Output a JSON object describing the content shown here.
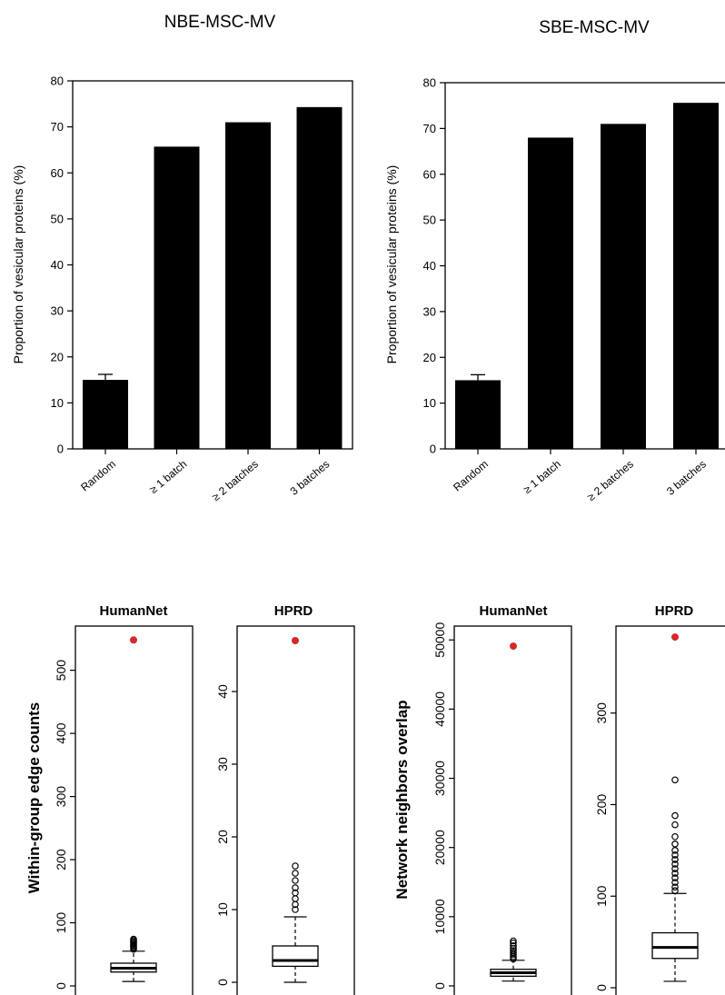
{
  "chart_data": [
    {
      "type": "bar",
      "title": "NBE-MSC-MV",
      "ylabel": "Proportion of vesicular proteins (%)",
      "categories": [
        "Random",
        "≥  1 batch",
        "≥  2 batches",
        "3 batches"
      ],
      "values": [
        15,
        65.7,
        71,
        74.3
      ],
      "error": [
        1.2,
        null,
        null,
        null
      ],
      "ylim": [
        0,
        80
      ],
      "yticks": [
        "0",
        "10",
        "20",
        "30",
        "40",
        "50",
        "60",
        "70",
        "80"
      ],
      "bar_color": "#000000"
    },
    {
      "type": "bar",
      "title": "SBE-MSC-MV",
      "ylabel": "Proportion of vesicular proteins (%)",
      "categories": [
        "Random",
        "≥  1 batch",
        "≥  2 batches",
        "3 batches"
      ],
      "values": [
        15,
        68,
        71,
        75.6
      ],
      "error": [
        1.2,
        null,
        null,
        null
      ],
      "ylim": [
        0,
        80
      ],
      "yticks": [
        "0",
        "10",
        "20",
        "30",
        "40",
        "50",
        "60",
        "70",
        "80"
      ],
      "bar_color": "#000000"
    },
    {
      "type": "boxplot",
      "ylabel": "Within-group edge counts",
      "panels": [
        {
          "title": "HumanNet",
          "ylim": [
            0,
            570
          ],
          "yticks": [
            "0",
            "100",
            "200",
            "300",
            "400",
            "500"
          ],
          "box": {
            "whisker_low": 7,
            "q1": 22,
            "median": 28,
            "q3": 36,
            "whisker_high": 55
          },
          "outliers": [
            58,
            60,
            62,
            64,
            66,
            68,
            70,
            72,
            74
          ],
          "observed": 548
        },
        {
          "title": "HPRD",
          "ylim": [
            0,
            49
          ],
          "yticks": [
            "0",
            "10",
            "20",
            "30",
            "40"
          ],
          "box": {
            "whisker_low": 0,
            "q1": 2.2,
            "median": 3,
            "q3": 5,
            "whisker_high": 9
          },
          "outliers": [
            10,
            10.7,
            11.5,
            12.3,
            13,
            14,
            15,
            16
          ],
          "observed": 47
        }
      ],
      "observed_color": "#d42a2a"
    },
    {
      "type": "boxplot",
      "ylabel": "Network neighbors overlap",
      "panels": [
        {
          "title": "HumanNet",
          "ylim": [
            0,
            52000
          ],
          "yticks": [
            "0",
            "10000",
            "20000",
            "30000",
            "40000",
            "50000"
          ],
          "box": {
            "whisker_low": 700,
            "q1": 1400,
            "median": 1900,
            "q3": 2400,
            "whisker_high": 3700
          },
          "outliers": [
            3900,
            4200,
            4500,
            4800,
            5100,
            5400,
            5800,
            6200,
            6500
          ],
          "observed": 49100
        },
        {
          "title": "HPRD",
          "ylim": [
            0,
            395
          ],
          "yticks": [
            "0",
            "100",
            "200",
            "300"
          ],
          "box": {
            "whisker_low": 7,
            "q1": 32,
            "median": 44,
            "q3": 60,
            "whisker_high": 103
          },
          "outliers": [
            106,
            110,
            115,
            120,
            125,
            130,
            135,
            140,
            145,
            150,
            157,
            165,
            178,
            188,
            227
          ],
          "observed": 383
        }
      ],
      "observed_color": "#d42a2a"
    }
  ]
}
